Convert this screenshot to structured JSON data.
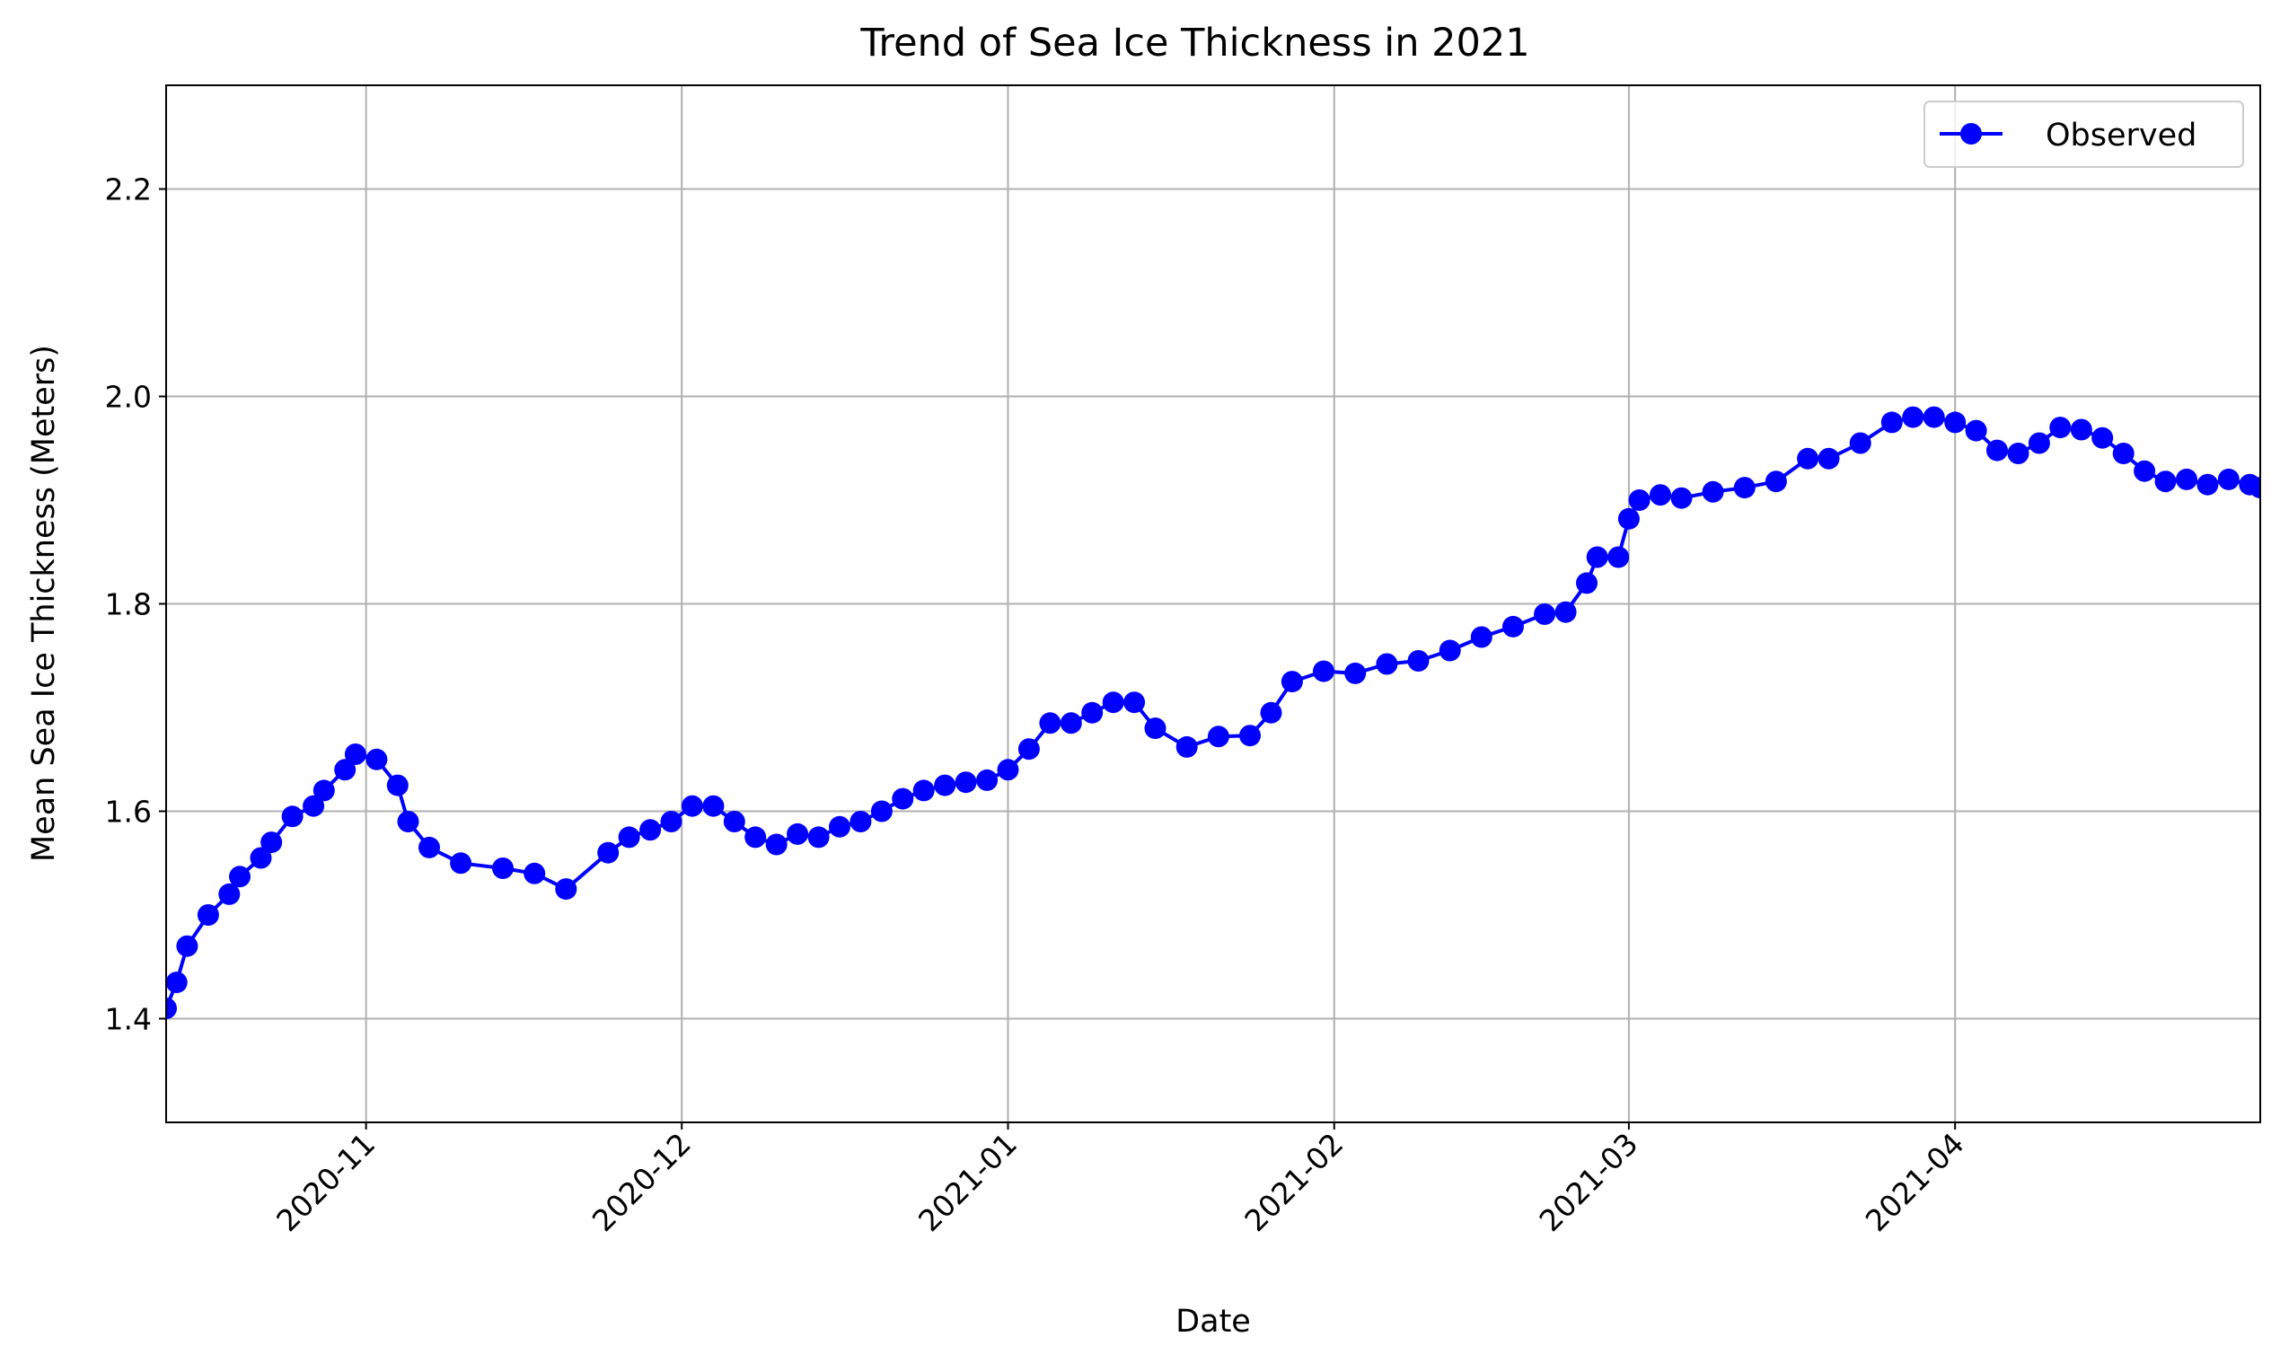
{
  "chart_data": {
    "type": "line",
    "title": "Trend of Sea Ice Thickness in 2021",
    "xlabel": "Date",
    "ylabel": "Mean Sea Ice Thickness (Meters)",
    "xlim": [
      "2020-10-13",
      "2021-04-30"
    ],
    "ylim": [
      1.3,
      2.3
    ],
    "grid": true,
    "legend_position": "top-right",
    "x_ticks": [
      "2020-11",
      "2020-12",
      "2021-01",
      "2021-02",
      "2021-03",
      "2021-04"
    ],
    "y_ticks": [
      "1.4",
      "1.6",
      "1.8",
      "2.0",
      "2.2"
    ],
    "color": "#0000ff",
    "series": [
      {
        "name": "Observed",
        "marker": "circle",
        "x": [
          "2020-10-13",
          "2020-10-14",
          "2020-10-15",
          "2020-10-17",
          "2020-10-19",
          "2020-10-20",
          "2020-10-22",
          "2020-10-23",
          "2020-10-25",
          "2020-10-27",
          "2020-10-28",
          "2020-10-30",
          "2020-10-31",
          "2020-11-02",
          "2020-11-04",
          "2020-11-05",
          "2020-11-07",
          "2020-11-10",
          "2020-11-14",
          "2020-11-17",
          "2020-11-20",
          "2020-11-24",
          "2020-11-26",
          "2020-11-28",
          "2020-11-30",
          "2020-12-02",
          "2020-12-04",
          "2020-12-06",
          "2020-12-08",
          "2020-12-10",
          "2020-12-12",
          "2020-12-14",
          "2020-12-16",
          "2020-12-18",
          "2020-12-20",
          "2020-12-22",
          "2020-12-24",
          "2020-12-26",
          "2020-12-28",
          "2020-12-30",
          "2021-01-01",
          "2021-01-03",
          "2021-01-05",
          "2021-01-07",
          "2021-01-09",
          "2021-01-11",
          "2021-01-13",
          "2021-01-15",
          "2021-01-18",
          "2021-01-21",
          "2021-01-24",
          "2021-01-26",
          "2021-01-28",
          "2021-01-31",
          "2021-02-03",
          "2021-02-06",
          "2021-02-09",
          "2021-02-12",
          "2021-02-15",
          "2021-02-18",
          "2021-02-21",
          "2021-02-23",
          "2021-02-25",
          "2021-02-26",
          "2021-02-28",
          "2021-03-01",
          "2021-03-02",
          "2021-03-04",
          "2021-03-06",
          "2021-03-09",
          "2021-03-12",
          "2021-03-15",
          "2021-03-18",
          "2021-03-20",
          "2021-03-23",
          "2021-03-26",
          "2021-03-28",
          "2021-03-30",
          "2021-04-01",
          "2021-04-03",
          "2021-04-05",
          "2021-04-07",
          "2021-04-09",
          "2021-04-11",
          "2021-04-13",
          "2021-04-15",
          "2021-04-17",
          "2021-04-19",
          "2021-04-21",
          "2021-04-23",
          "2021-04-25",
          "2021-04-27",
          "2021-04-29",
          "2021-04-30"
        ],
        "y": [
          1.41,
          1.435,
          1.47,
          1.5,
          1.52,
          1.537,
          1.555,
          1.57,
          1.595,
          1.605,
          1.62,
          1.64,
          1.655,
          1.65,
          1.625,
          1.59,
          1.565,
          1.55,
          1.545,
          1.54,
          1.525,
          1.56,
          1.575,
          1.582,
          1.59,
          1.605,
          1.605,
          1.59,
          1.575,
          1.568,
          1.578,
          1.575,
          1.585,
          1.59,
          1.6,
          1.612,
          1.62,
          1.625,
          1.628,
          1.63,
          1.64,
          1.66,
          1.685,
          1.685,
          1.695,
          1.705,
          1.705,
          1.68,
          1.662,
          1.672,
          1.673,
          1.695,
          1.725,
          1.735,
          1.733,
          1.742,
          1.745,
          1.755,
          1.768,
          1.778,
          1.79,
          1.792,
          1.82,
          1.845,
          1.845,
          1.882,
          1.9,
          1.905,
          1.902,
          1.908,
          1.912,
          1.918,
          1.94,
          1.94,
          1.955,
          1.975,
          1.98,
          1.98,
          1.975,
          1.967,
          1.948,
          1.945,
          1.955,
          1.97,
          1.968,
          1.96,
          1.945,
          1.928,
          1.918,
          1.92,
          1.915,
          1.92,
          1.915,
          1.912
        ]
      }
    ]
  }
}
